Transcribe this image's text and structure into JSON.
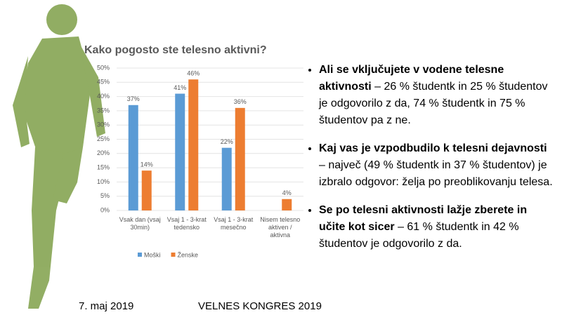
{
  "chart_data": {
    "type": "bar",
    "title": "Kako pogosto ste telesno aktivni?",
    "categories": [
      "Vsak dan (vsaj 30min)",
      "Vsaj 1 - 3-krat tedensko",
      "Vsaj 1 - 3-krat mesečno",
      "Nisem telesno aktiven / aktivna"
    ],
    "series": [
      {
        "name": "Moški",
        "color": "#5b9bd5",
        "values": [
          37,
          41,
          22,
          null
        ],
        "value_labels": [
          "37%",
          "41%",
          "22%",
          null
        ]
      },
      {
        "name": "Ženske",
        "color": "#ed7d31",
        "values": [
          14,
          46,
          36,
          4
        ],
        "value_labels": [
          "14%",
          "46%",
          "36%",
          "4%"
        ]
      }
    ],
    "ylim": [
      0,
      50
    ],
    "yticks": [
      {
        "value": 0,
        "label": "0%"
      },
      {
        "value": 5,
        "label": "5%"
      },
      {
        "value": 10,
        "label": "10%"
      },
      {
        "value": 15,
        "label": "15%"
      },
      {
        "value": 20,
        "label": "20%"
      },
      {
        "value": 25,
        "label": "25%"
      },
      {
        "value": 30,
        "label": "30%"
      },
      {
        "value": 35,
        "label": "35%"
      },
      {
        "value": 40,
        "label": "40%"
      },
      {
        "value": 45,
        "label": "45%"
      },
      {
        "value": 50,
        "label": "50%"
      }
    ],
    "grid": true,
    "legend": "bottom"
  },
  "bullets": [
    {
      "bold": "Ali se vključujete v vodene telesne aktivnosti",
      "text": "– 26 % študentk in 25 % študentov je odgovorilo z da, 74 % študentk in 75 % študentov pa z ne."
    },
    {
      "bold": "Kaj vas je vzpodbudilo k telesni dejavnosti",
      "text": "– največ (49 % študentk in 37 % študentov) je izbralo odgovor: želja po preoblikovanju telesa."
    },
    {
      "bold": "Se po telesni aktivnosti lažje zberete in učite kot sicer",
      "text": "– 61 % študentk in 42 % študentov je odgovorilo z da."
    }
  ],
  "footer": {
    "date": "7. maj 2019",
    "event": "VELNES KONGRES 2019"
  }
}
